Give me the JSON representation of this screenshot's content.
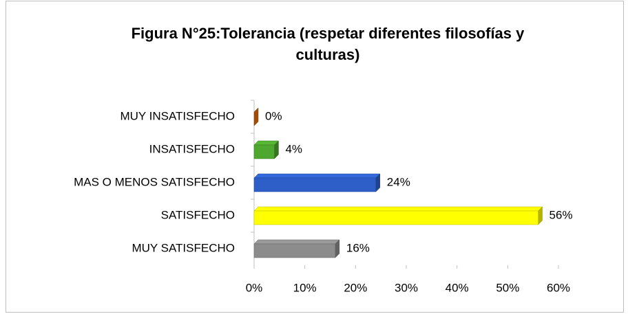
{
  "chart_data": {
    "type": "bar",
    "orientation": "horizontal",
    "title": [
      "Figura N°25:Tolerancia (respetar diferentes filosofías y",
      "culturas)"
    ],
    "categories": [
      "MUY INSATISFECHO",
      "INSATISFECHO",
      "MAS O MENOS SATISFECHO",
      "SATISFECHO",
      "MUY SATISFECHO"
    ],
    "values": [
      0,
      4,
      24,
      56,
      16
    ],
    "value_labels": [
      "0%",
      "4%",
      "24%",
      "56%",
      "16%"
    ],
    "colors": [
      "#e46c0a",
      "#4ea72e",
      "#2e5fc8",
      "#ffff00",
      "#8c8c8c"
    ],
    "xlim": [
      0,
      60
    ],
    "xticks": [
      {
        "value": 0,
        "label": "0%"
      },
      {
        "value": 10,
        "label": "10%"
      },
      {
        "value": 20,
        "label": "20%"
      },
      {
        "value": 30,
        "label": "30%"
      },
      {
        "value": 40,
        "label": "40%"
      },
      {
        "value": 50,
        "label": "50%"
      },
      {
        "value": 60,
        "label": "60%"
      }
    ],
    "grid": false
  }
}
